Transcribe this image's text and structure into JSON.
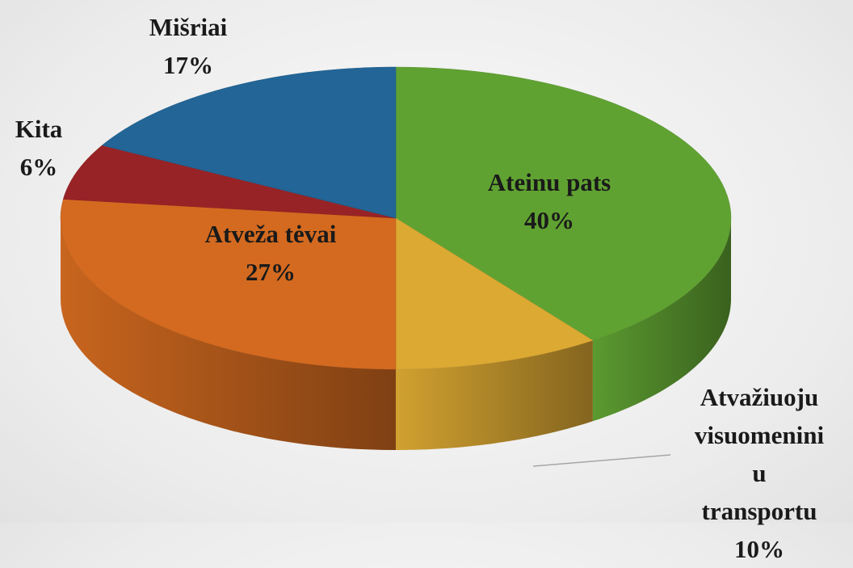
{
  "chart_data": {
    "type": "pie3d",
    "categories": [
      "Ateinu pats",
      "Atvažiuoju\nvisuomenini\nu transportu",
      "Atveža tėvai",
      "Kita",
      "Mišriai"
    ],
    "values": [
      40,
      10,
      27,
      6,
      17
    ],
    "value_labels": [
      "40%",
      "10%",
      "27%",
      "6%",
      "17%"
    ],
    "colors": [
      "#60a232",
      "#dca933",
      "#d36a20",
      "#982326",
      "#226596"
    ]
  }
}
